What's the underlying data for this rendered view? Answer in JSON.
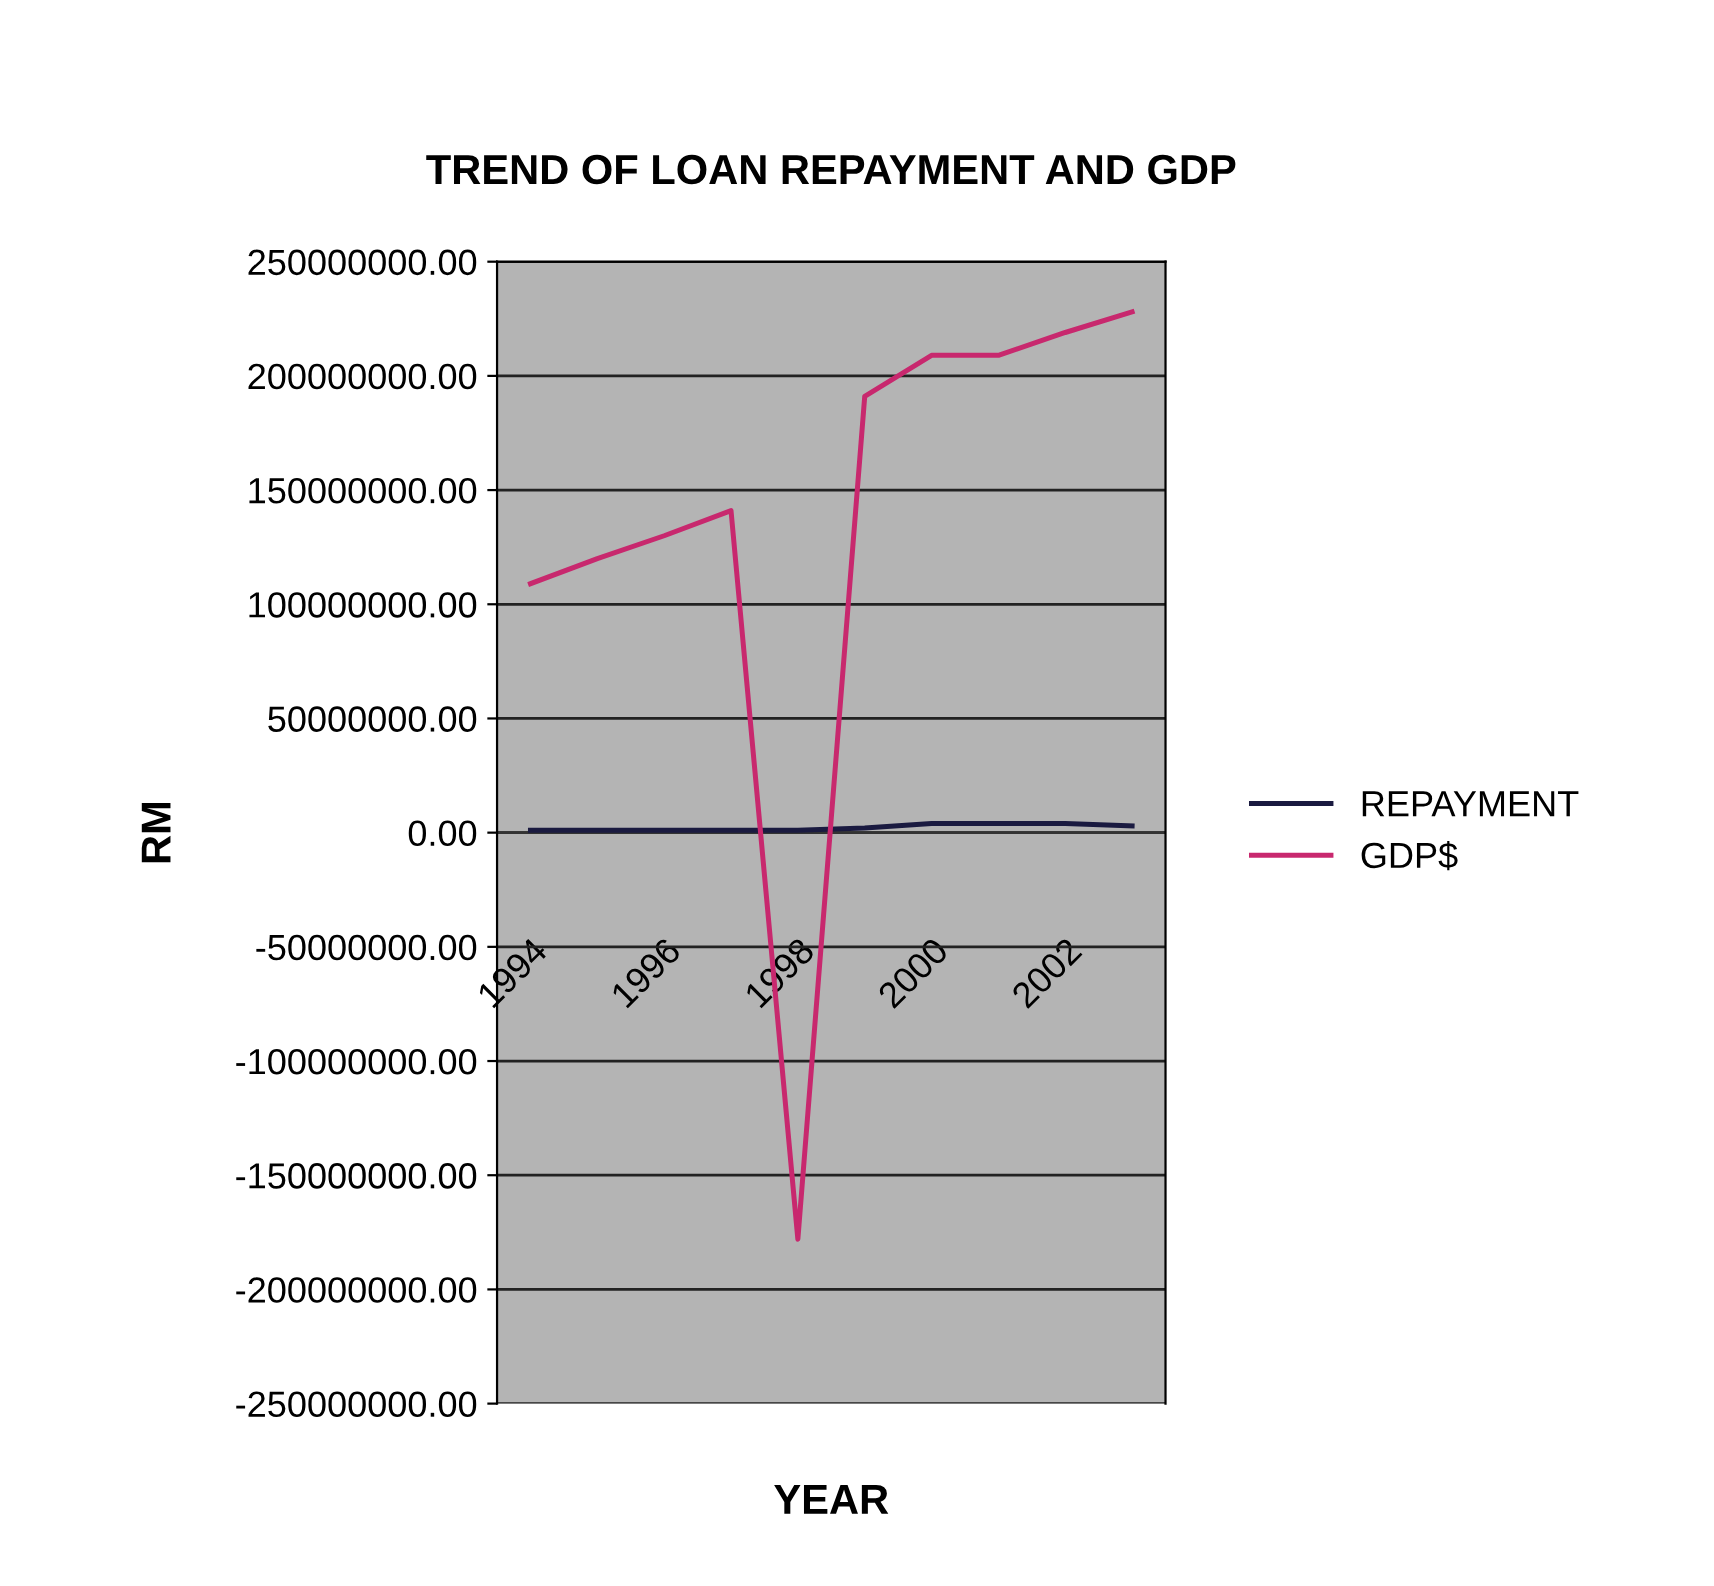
{
  "chart_data": {
    "type": "line",
    "title": "TREND OF LOAN REPAYMENT AND GDP",
    "xlabel": "YEAR",
    "ylabel": "RM",
    "categories": [
      "1994",
      null,
      "1996",
      null,
      "1998",
      null,
      "2000",
      null,
      "2002",
      null
    ],
    "series": [
      {
        "name": "REPAYMENT",
        "color": "#1a1a40",
        "values": [
          1000000,
          1000000,
          1000000,
          1000000,
          1000000,
          2000000,
          4000000,
          4000000,
          4000000,
          3000000
        ]
      },
      {
        "name": "GDP$",
        "color": "#c8286e",
        "values": [
          109000000,
          120000000,
          130000000,
          141000000,
          -178000000,
          191000000,
          209000000,
          209000000,
          219000000,
          228000000
        ]
      }
    ],
    "ylim": [
      -250000000,
      250000000
    ],
    "yticks": [
      {
        "value": -250000000,
        "label": "-250000000.00"
      },
      {
        "value": -200000000,
        "label": "-200000000.00"
      },
      {
        "value": -150000000,
        "label": "-150000000.00"
      },
      {
        "value": -100000000,
        "label": "-100000000.00"
      },
      {
        "value": -50000000,
        "label": "-50000000.00"
      },
      {
        "value": 0,
        "label": "0.00"
      },
      {
        "value": 50000000,
        "label": "50000000.00"
      },
      {
        "value": 100000000,
        "label": "100000000.00"
      },
      {
        "value": 150000000,
        "label": "150000000.00"
      },
      {
        "value": 200000000,
        "label": "200000000.00"
      },
      {
        "value": 250000000,
        "label": "250000000.00"
      }
    ],
    "grid": "y",
    "legend": "right",
    "marker": "none",
    "line_style": "solid"
  }
}
